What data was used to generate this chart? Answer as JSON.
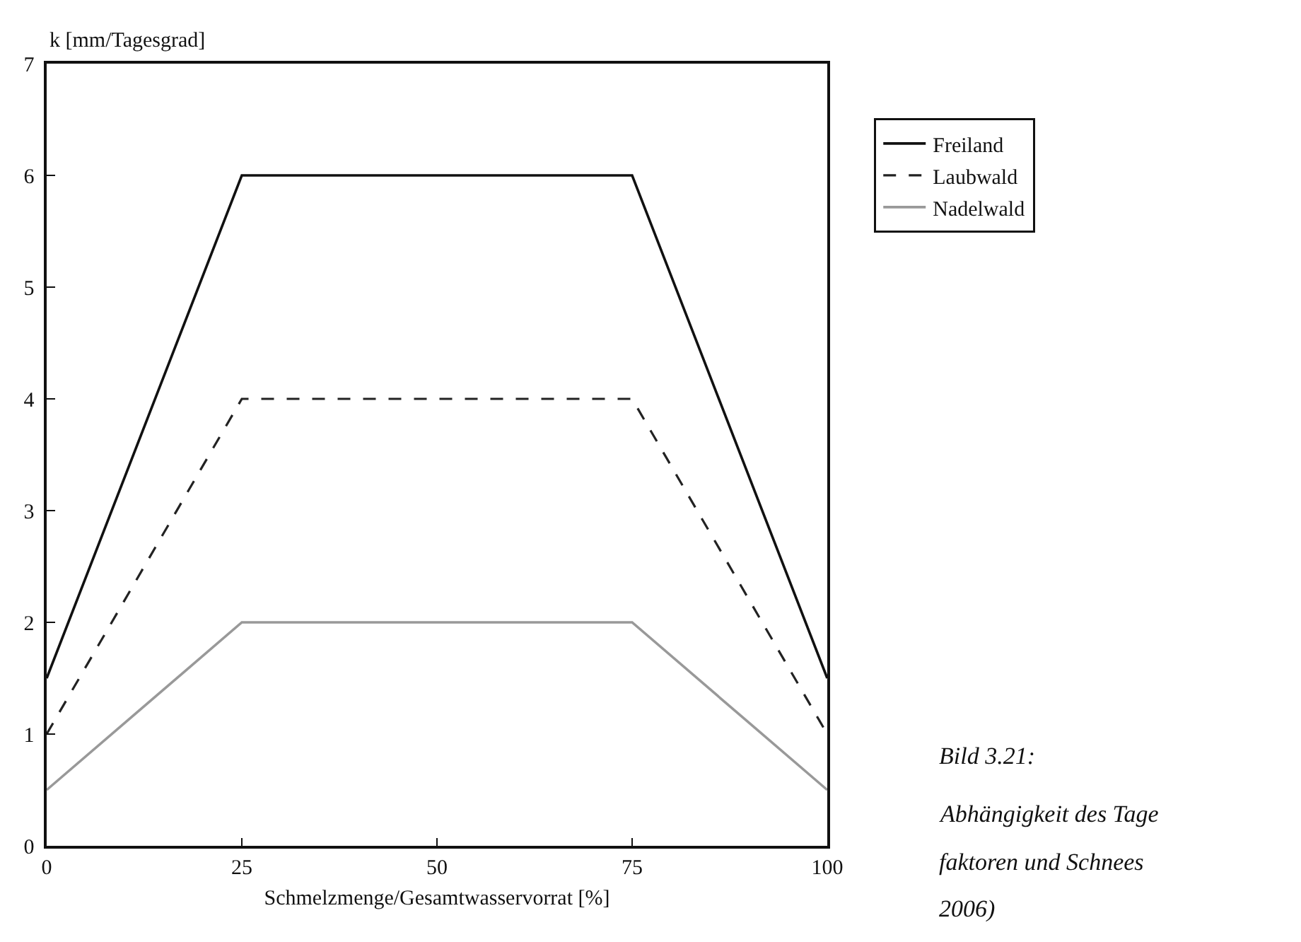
{
  "chart_data": {
    "type": "line",
    "xlabel": "Schmelzmenge/Gesamtwasservorrat [%]",
    "ylabel": "k [mm/Tagesgrad]",
    "x": [
      0,
      25,
      75,
      100
    ],
    "series": [
      {
        "name": "Freiland",
        "color": "#111111",
        "values": [
          1.5,
          6,
          6,
          1.5
        ],
        "line_style": "solid"
      },
      {
        "name": "Laubwald",
        "color": "#222222",
        "values": [
          1,
          4,
          4,
          1
        ],
        "line_style": "dashed"
      },
      {
        "name": "Nadelwald",
        "color": "#999999",
        "values": [
          0.5,
          2,
          2,
          0.5
        ],
        "line_style": "solid"
      }
    ],
    "xlim": [
      0,
      100
    ],
    "xticks": [
      0,
      25,
      50,
      75,
      100
    ],
    "ylim": [
      0,
      7
    ],
    "yticks": [
      0,
      1,
      2,
      3,
      4,
      5,
      6,
      7
    ],
    "grid": false,
    "legend": "top right",
    "marker": "none",
    "annotations": [
      "Bild 3.21:",
      "Abhängigkeit des Tage",
      "faktoren und Schnees",
      "2006)"
    ]
  }
}
